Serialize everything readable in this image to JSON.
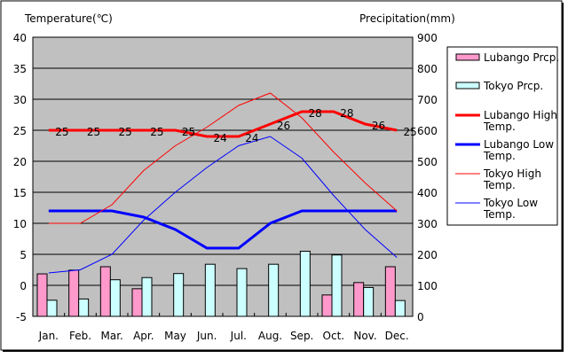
{
  "chart_data": {
    "type": "bar+line",
    "categories": [
      "Jan.",
      "Feb.",
      "Mar.",
      "Apr.",
      "May",
      "Jun.",
      "Jul.",
      "Aug.",
      "Sep.",
      "Oct.",
      "Nov.",
      "Dec."
    ],
    "ylabel_left": "Temperature(℃)",
    "ylabel_right": "Precipitation(mm)",
    "ylim_left": [
      -5,
      40
    ],
    "ylim_right": [
      0,
      900
    ],
    "left_ticks": [
      "-5",
      "0",
      "5",
      "10",
      "15",
      "20",
      "25",
      "30",
      "35",
      "40"
    ],
    "right_ticks": [
      "0",
      "100",
      "200",
      "300",
      "400",
      "500",
      "600",
      "700",
      "800",
      "900"
    ],
    "grid": true,
    "legend_position": "right",
    "bar_series": [
      {
        "name": "Lubango Prcp.",
        "color": "#ff99cc",
        "values": [
          137,
          149,
          160,
          89,
          0,
          0,
          0,
          0,
          0,
          69,
          109,
          160
        ]
      },
      {
        "name": "Tokyo Prcp.",
        "color": "#ccffff",
        "values": [
          52,
          56,
          118,
          125,
          138,
          168,
          154,
          168,
          210,
          198,
          93,
          51
        ]
      }
    ],
    "line_series": [
      {
        "name": "Lubango High Temp.",
        "color": "#ff0000",
        "width": 3,
        "labels": true,
        "values": [
          25,
          25,
          25,
          25,
          25,
          24,
          24,
          26,
          28,
          28,
          26,
          25
        ]
      },
      {
        "name": "Lubango Low Temp.",
        "color": "#0000ff",
        "width": 3,
        "labels": false,
        "values": [
          12,
          12,
          12,
          11,
          9,
          6,
          6,
          10,
          12,
          12,
          12,
          12
        ]
      },
      {
        "name": "Tokyo High Temp.",
        "color": "#ff0000",
        "width": 1,
        "labels": false,
        "values": [
          10,
          10,
          13,
          18.5,
          22.5,
          25.5,
          29,
          31,
          27,
          21.5,
          16.5,
          12
        ]
      },
      {
        "name": "Tokyo Low Temp.",
        "color": "#0000ff",
        "width": 1,
        "labels": false,
        "values": [
          2,
          2.5,
          5,
          10.5,
          15,
          19,
          22.5,
          24,
          20.5,
          14.5,
          9,
          4.5
        ]
      }
    ],
    "legend": {
      "items": [
        {
          "line1": "Lubango Prcp.",
          "line2": ""
        },
        {
          "line1": "Tokyo Prcp.",
          "line2": ""
        },
        {
          "line1": "Lubango High",
          "line2": "Temp."
        },
        {
          "line1": "Lubango Low",
          "line2": "Temp."
        },
        {
          "line1": "Tokyo High",
          "line2": "Temp."
        },
        {
          "line1": "Tokyo Low",
          "line2": "Temp."
        }
      ]
    }
  }
}
